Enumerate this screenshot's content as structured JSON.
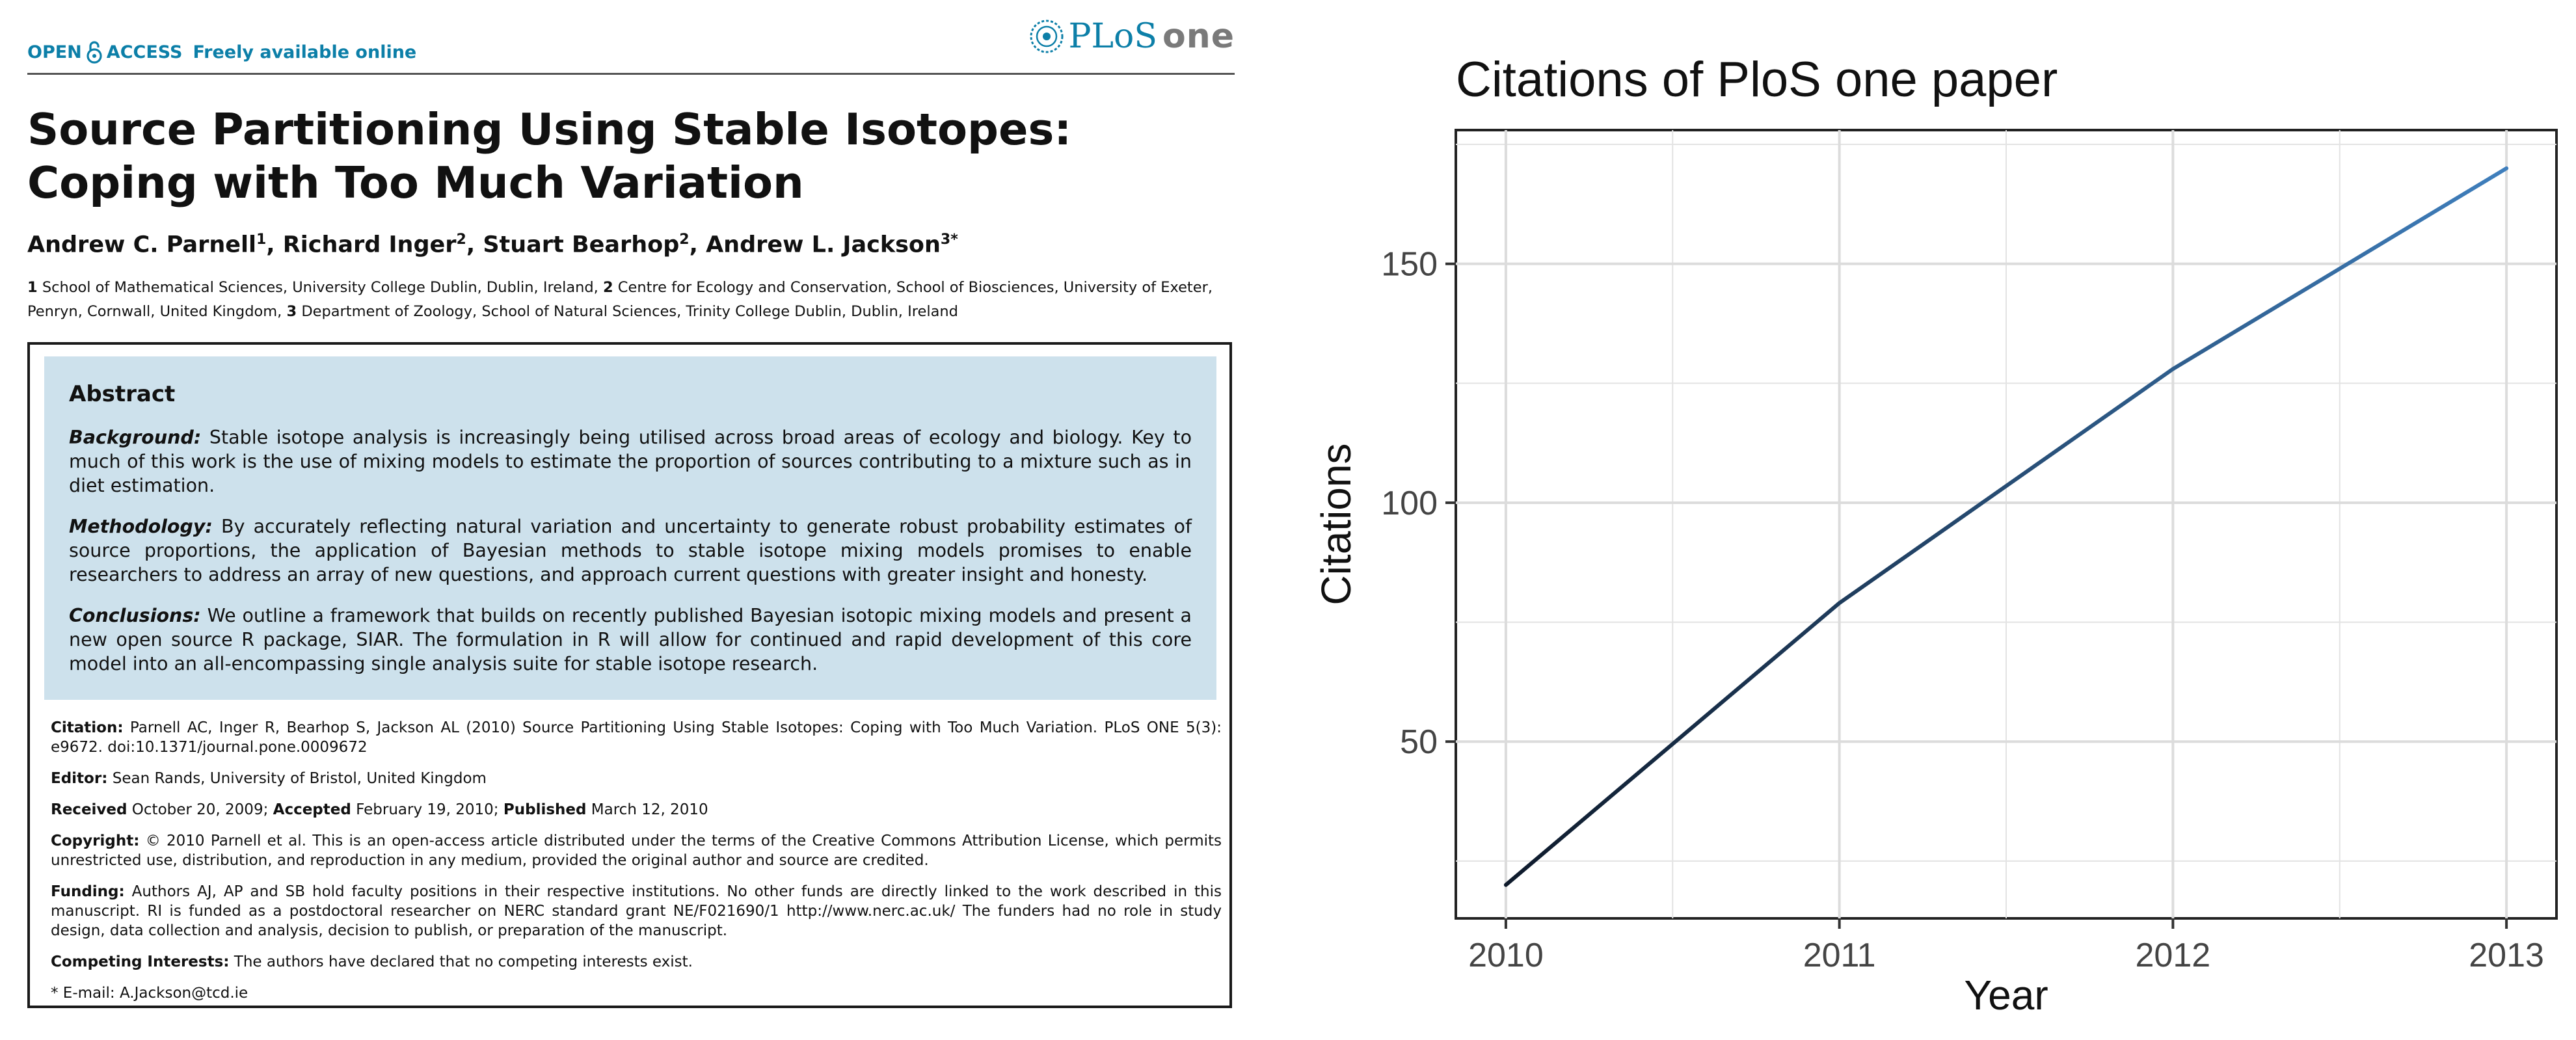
{
  "paper": {
    "open_access_prefix": "OPEN",
    "open_access_suffix": "ACCESS",
    "freely_available": "Freely available online",
    "logo_plos": "PLoS",
    "logo_one": "one",
    "title": "Source Partitioning Using Stable Isotopes: Coping with Too Much Variation",
    "authors": [
      {
        "name": "Andrew C. Parnell",
        "sup": "1"
      },
      {
        "name": "Richard Inger",
        "sup": "2"
      },
      {
        "name": "Stuart Bearhop",
        "sup": "2"
      },
      {
        "name": "Andrew L. Jackson",
        "sup": "3*"
      }
    ],
    "affiliations": [
      {
        "num": "1",
        "text": "School of Mathematical Sciences, University College Dublin, Dublin, Ireland,"
      },
      {
        "num": "2",
        "text": "Centre for Ecology and Conservation, School of Biosciences, University of Exeter, Penryn, Cornwall, United Kingdom,"
      },
      {
        "num": "3",
        "text": "Department of Zoology, School of Natural Sciences, Trinity College Dublin, Dublin, Ireland"
      }
    ],
    "abstract": {
      "heading": "Abstract",
      "background_label": "Background:",
      "background": "Stable isotope analysis is increasingly being utilised across broad areas of ecology and biology. Key to much of this work is the use of mixing models to estimate the proportion of sources contributing to a mixture such as in diet estimation.",
      "methodology_label": "Methodology:",
      "methodology": "By accurately reflecting natural variation and uncertainty to generate robust probability estimates of source proportions, the application of Bayesian methods to stable isotope mixing models promises to enable researchers to address an array of new questions, and approach current questions with greater insight and honesty.",
      "conclusions_label": "Conclusions:",
      "conclusions": "We outline a framework that builds on recently published Bayesian isotopic mixing models and present a new open source R package, SIAR. The formulation in R will allow for continued and rapid development of this core model into an all-encompassing single analysis suite for stable isotope research."
    },
    "citation_label": "Citation:",
    "citation": "Parnell AC, Inger R, Bearhop S, Jackson AL (2010) Source Partitioning Using Stable Isotopes: Coping with Too Much Variation. PLoS ONE 5(3): e9672. doi:10.1371/journal.pone.0009672",
    "editor_label": "Editor:",
    "editor": "Sean Rands, University of Bristol, United Kingdom",
    "received_label": "Received",
    "received": "October 20, 2009;",
    "accepted_label": "Accepted",
    "accepted": "February 19, 2010;",
    "published_label": "Published",
    "published": "March 12, 2010",
    "copyright_label": "Copyright:",
    "copyright": "© 2010 Parnell et al. This is an open-access article distributed under the terms of the Creative Commons Attribution License, which permits unrestricted use, distribution, and reproduction in any medium, provided the original author and source are credited.",
    "funding_label": "Funding:",
    "funding": "Authors AJ, AP and SB hold faculty positions in their respective institutions. No other funds are directly linked to the work described in this manuscript. RI is funded as a postdoctoral researcher on NERC standard grant NE/F021690/1 http://www.nerc.ac.uk/ The funders had no role in study design, data collection and analysis, decision to publish, or preparation of the manuscript.",
    "competing_label": "Competing Interests:",
    "competing": "The authors have declared that no competing interests exist.",
    "email": "* E-mail: A.Jackson@tcd.ie"
  },
  "chart_data": {
    "type": "line",
    "title": "Citations of PloS one paper",
    "xlabel": "Year",
    "ylabel": "Citations",
    "x": [
      2010,
      2011,
      2012,
      2013
    ],
    "values": [
      20,
      79,
      128,
      170
    ],
    "xlim": [
      2009.85,
      2013.15
    ],
    "ylim": [
      13,
      178
    ],
    "x_ticks": [
      2010,
      2011,
      2012,
      2013
    ],
    "y_ticks": [
      50,
      100,
      150
    ],
    "grid": true,
    "legend": "none",
    "line_color_start": "#0e1a2b",
    "line_color_end": "#3f7fbd",
    "background": "#ffffff",
    "grid_color": "#e3e3e3"
  }
}
